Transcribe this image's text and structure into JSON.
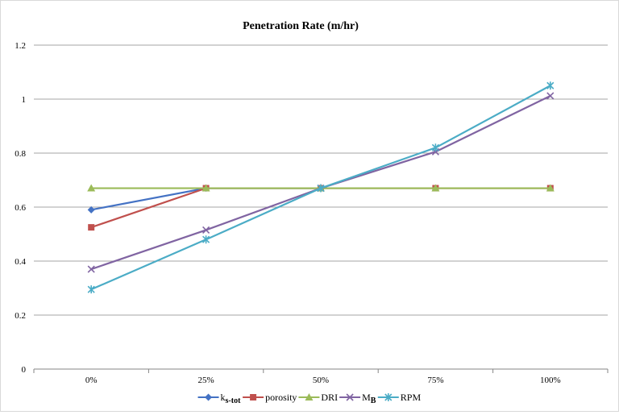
{
  "chart_data": {
    "type": "line",
    "title": "Penetration Rate (m/hr)",
    "xlabel": "",
    "ylabel": "",
    "categories": [
      "0%",
      "25%",
      "50%",
      "75%",
      "100%"
    ],
    "ylim": [
      0,
      1.2
    ],
    "yticks": [
      "0",
      "0.2",
      "0.4",
      "0.6",
      "0.8",
      "1",
      "1.2"
    ],
    "grid": true,
    "legend_position": "bottom",
    "series": [
      {
        "name": "ks-tot",
        "legend_main": "k",
        "legend_sub": "s-tot",
        "color": "#4472C4",
        "marker": "diamond",
        "values": [
          0.59,
          0.67,
          0.67,
          null,
          null
        ]
      },
      {
        "name": "porosity",
        "legend_main": "porosity",
        "legend_sub": "",
        "color": "#C0504D",
        "marker": "square",
        "values": [
          0.525,
          0.67,
          0.67,
          0.67,
          0.67
        ]
      },
      {
        "name": "DRI",
        "legend_main": "DRI",
        "legend_sub": "",
        "color": "#9BBB59",
        "marker": "triangle",
        "values": [
          0.67,
          0.67,
          0.67,
          0.67,
          0.67
        ]
      },
      {
        "name": "MB",
        "legend_main": "M",
        "legend_sub": "B",
        "color": "#8064A2",
        "marker": "x",
        "values": [
          0.37,
          0.515,
          0.67,
          0.805,
          1.012
        ]
      },
      {
        "name": "RPM",
        "legend_main": "RPM",
        "legend_sub": "",
        "color": "#4BACC6",
        "marker": "star",
        "values": [
          0.295,
          0.48,
          0.67,
          0.82,
          1.05
        ]
      }
    ]
  }
}
